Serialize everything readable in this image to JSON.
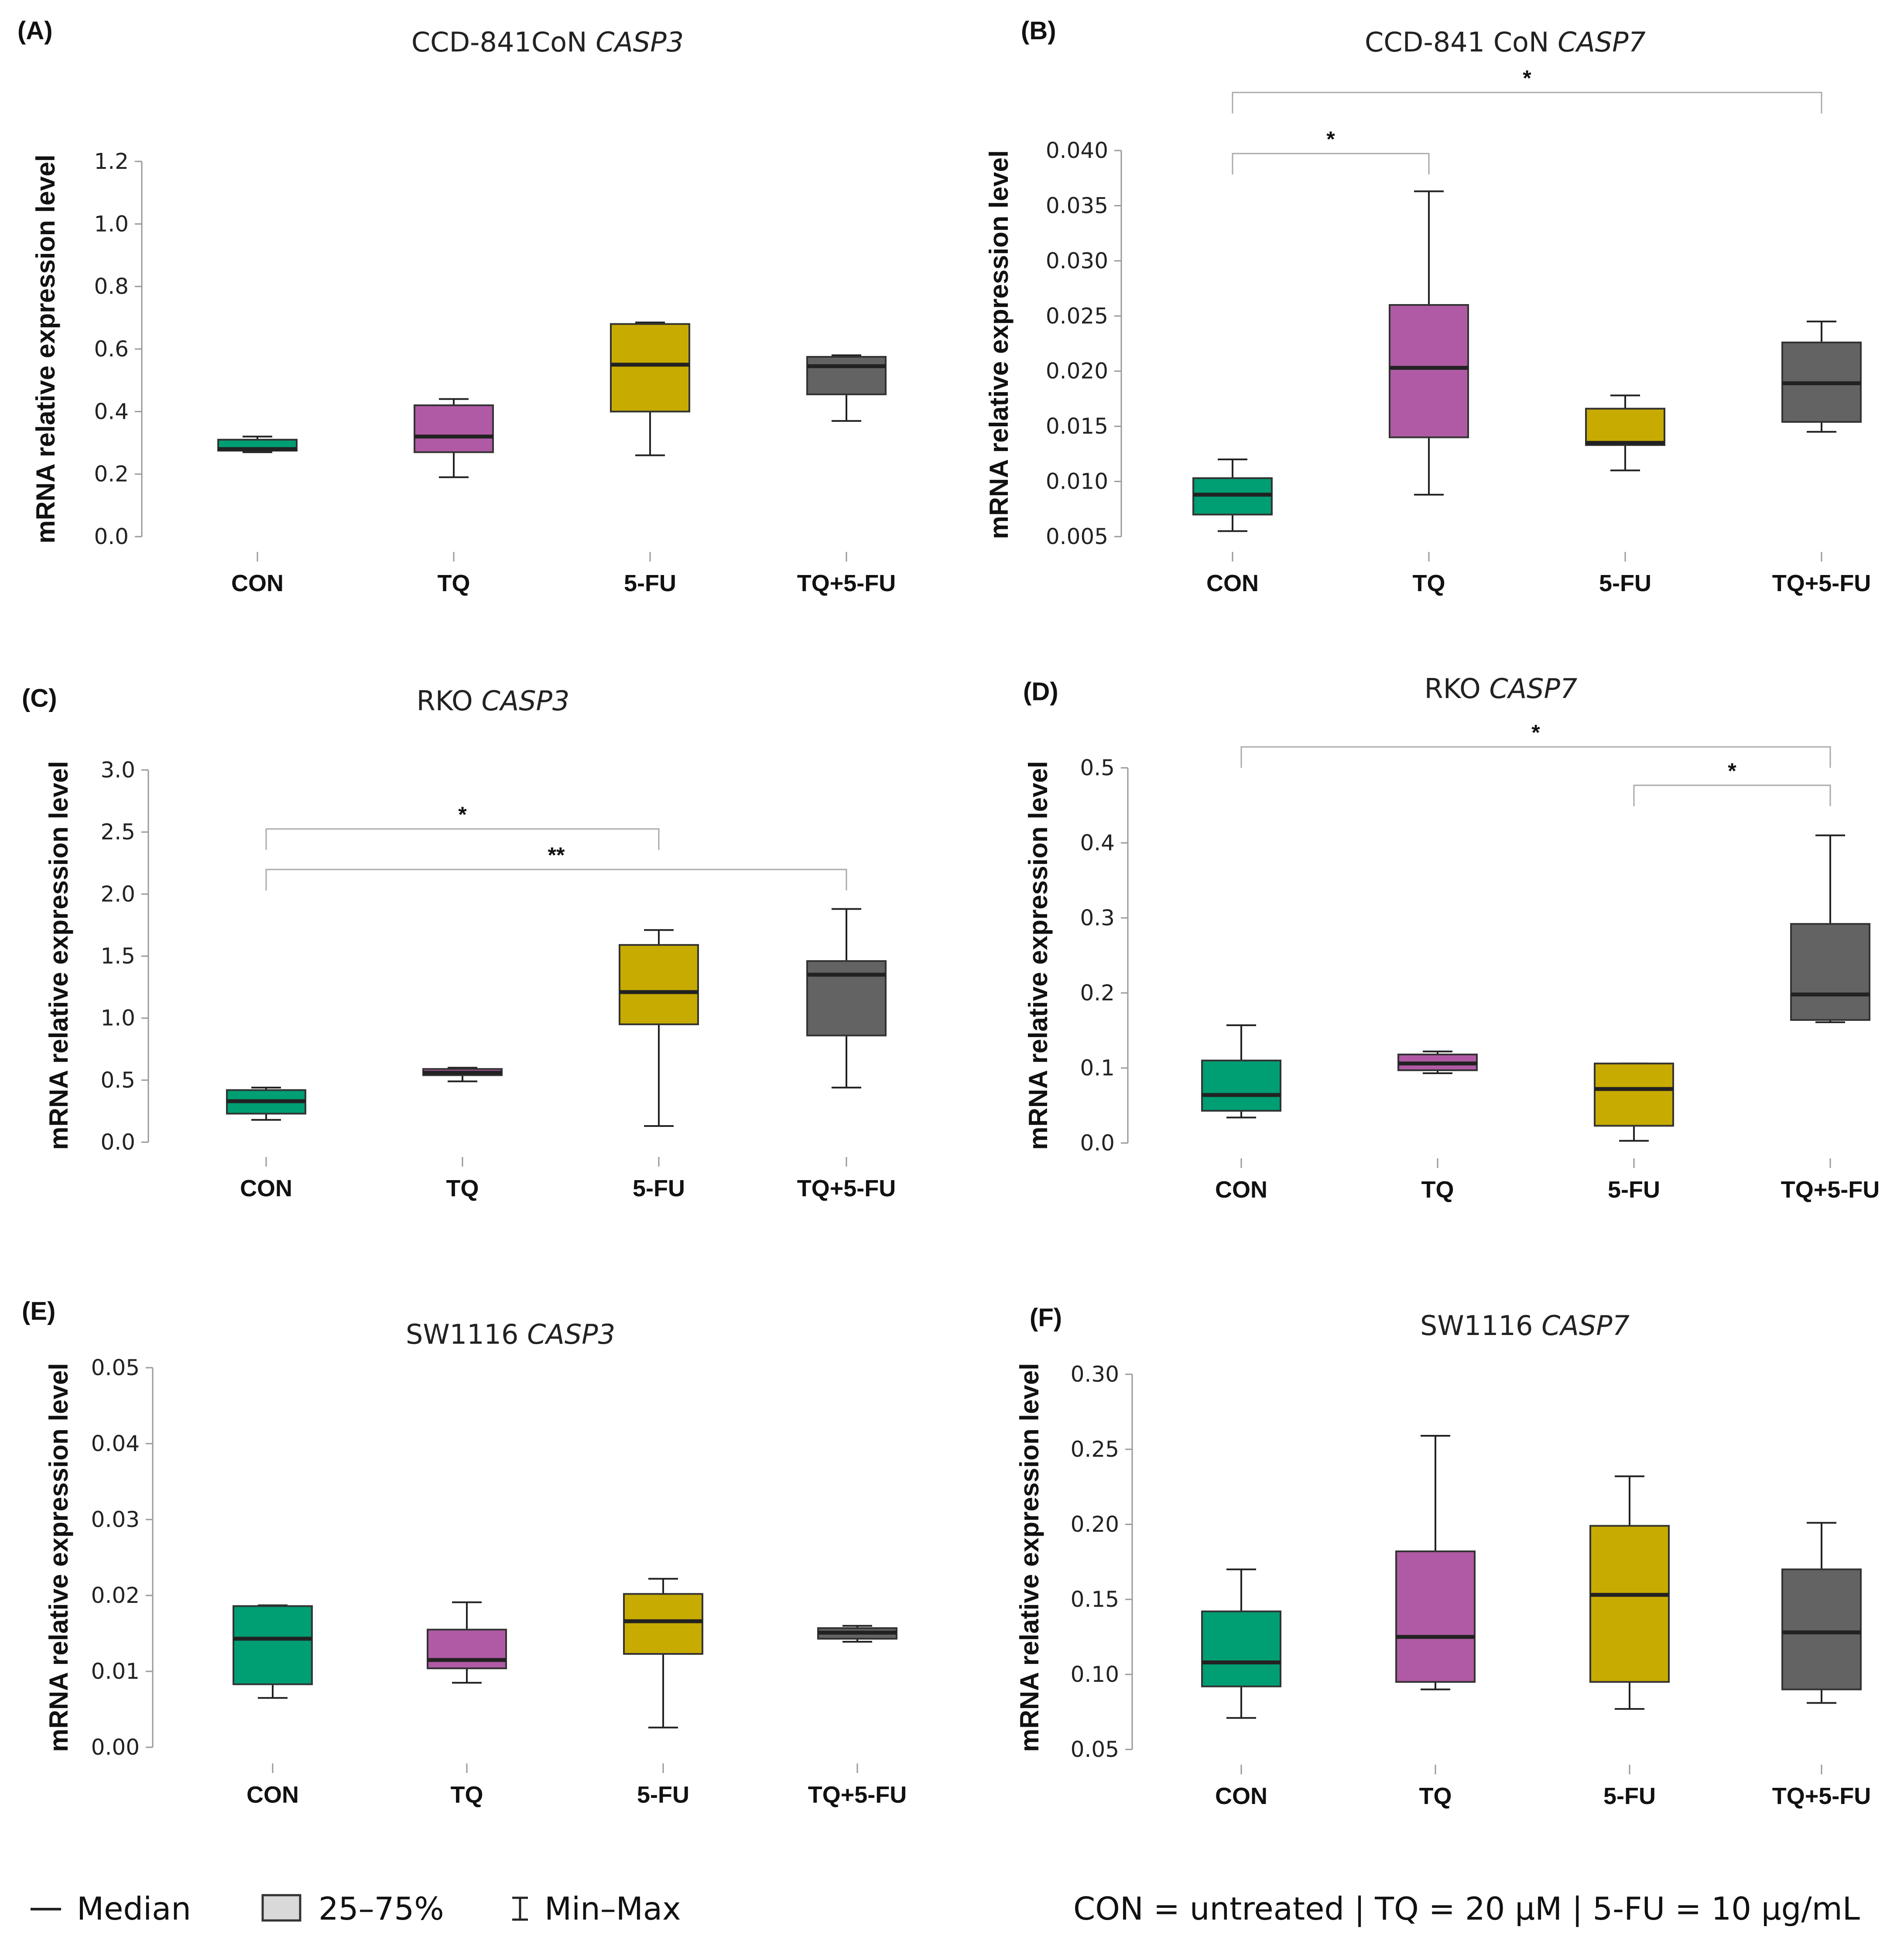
{
  "chart_data": [
    {
      "panel": "(A)",
      "type": "box",
      "title": "CCD-841CoN",
      "title_gene": "CASP3",
      "ylabel": "mRNA relative expression level",
      "categories": [
        "CON",
        "TQ",
        "5-FU",
        "TQ+5-FU"
      ],
      "ylim": [
        0,
        1.2
      ],
      "yticks": [
        "0.0",
        "0.2",
        "0.4",
        "0.6",
        "0.8",
        "1.0",
        "1.2"
      ],
      "colors": [
        "#009e73",
        "#b05aa5",
        "#c8ab00",
        "#636363"
      ],
      "boxes": [
        {
          "min": 0.27,
          "q1": 0.275,
          "median": 0.28,
          "q3": 0.31,
          "max": 0.32
        },
        {
          "min": 0.19,
          "q1": 0.27,
          "median": 0.32,
          "q3": 0.42,
          "max": 0.44
        },
        {
          "min": 0.26,
          "q1": 0.4,
          "median": 0.55,
          "q3": 0.68,
          "max": 0.685
        },
        {
          "min": 0.37,
          "q1": 0.455,
          "median": 0.545,
          "q3": 0.575,
          "max": 0.58
        }
      ],
      "sig": []
    },
    {
      "panel": "(B)",
      "type": "box",
      "title": "CCD-841 CoN",
      "title_gene": "CASP7",
      "ylabel": "mRNA relative expression level",
      "categories": [
        "CON",
        "TQ",
        "5-FU",
        "TQ+5-FU"
      ],
      "ylim": [
        0.005,
        0.04
      ],
      "yticks": [
        "0.005",
        "0.010",
        "0.015",
        "0.020",
        "0.025",
        "0.030",
        "0.035",
        "0.040"
      ],
      "colors": [
        "#009e73",
        "#b05aa5",
        "#c8ab00",
        "#636363"
      ],
      "boxes": [
        {
          "min": 0.0055,
          "q1": 0.007,
          "median": 0.0088,
          "q3": 0.0103,
          "max": 0.012
        },
        {
          "min": 0.0088,
          "q1": 0.014,
          "median": 0.0203,
          "q3": 0.026,
          "max": 0.0363
        },
        {
          "min": 0.011,
          "q1": 0.0133,
          "median": 0.0135,
          "q3": 0.0166,
          "max": 0.0178
        },
        {
          "min": 0.0145,
          "q1": 0.0154,
          "median": 0.0189,
          "q3": 0.0226,
          "max": 0.0245
        }
      ],
      "sig": [
        {
          "from": 0,
          "to": 1,
          "label": "*",
          "level": 0
        },
        {
          "from": 0,
          "to": 3,
          "label": "*",
          "level": 1
        }
      ]
    },
    {
      "panel": "(C)",
      "type": "box",
      "title": "RKO",
      "title_gene": "CASP3",
      "ylabel": "mRNA relative expression level",
      "categories": [
        "CON",
        "TQ",
        "5-FU",
        "TQ+5-FU"
      ],
      "ylim": [
        0,
        3.0
      ],
      "yticks": [
        "0.0",
        "0.5",
        "1.0",
        "1.5",
        "2.0",
        "2.5",
        "3.0"
      ],
      "colors": [
        "#009e73",
        "#b05aa5",
        "#c8ab00",
        "#636363"
      ],
      "boxes": [
        {
          "min": 0.18,
          "q1": 0.23,
          "median": 0.33,
          "q3": 0.42,
          "max": 0.44
        },
        {
          "min": 0.49,
          "q1": 0.54,
          "median": 0.56,
          "q3": 0.59,
          "max": 0.6
        },
        {
          "min": 0.13,
          "q1": 0.95,
          "median": 1.21,
          "q3": 1.59,
          "max": 1.71
        },
        {
          "min": 0.44,
          "q1": 0.86,
          "median": 1.35,
          "q3": 1.46,
          "max": 1.88
        }
      ],
      "sig": [
        {
          "from": 0,
          "to": 2,
          "label": "*",
          "level": 1
        },
        {
          "from": 0,
          "to": 3,
          "label": "**",
          "level": 0
        }
      ]
    },
    {
      "panel": "(D)",
      "type": "box",
      "title": "RKO",
      "title_gene": "CASP7",
      "ylabel": "mRNA relative expression level",
      "categories": [
        "CON",
        "TQ",
        "5-FU",
        "TQ+5-FU"
      ],
      "ylim": [
        0,
        0.5
      ],
      "yticks": [
        "0.0",
        "0.1",
        "0.2",
        "0.3",
        "0.4",
        "0.5"
      ],
      "colors": [
        "#009e73",
        "#b05aa5",
        "#c8ab00",
        "#636363"
      ],
      "boxes": [
        {
          "min": 0.034,
          "q1": 0.043,
          "median": 0.064,
          "q3": 0.11,
          "max": 0.157
        },
        {
          "min": 0.093,
          "q1": 0.097,
          "median": 0.106,
          "q3": 0.118,
          "max": 0.122
        },
        {
          "min": 0.003,
          "q1": 0.023,
          "median": 0.072,
          "q3": 0.106,
          "max": 0.106
        },
        {
          "min": 0.161,
          "q1": 0.164,
          "median": 0.198,
          "q3": 0.292,
          "max": 0.41
        }
      ],
      "sig": [
        {
          "from": 2,
          "to": 3,
          "label": "*",
          "level": 0
        },
        {
          "from": 0,
          "to": 3,
          "label": "*",
          "level": 1
        }
      ]
    },
    {
      "panel": "(E)",
      "type": "box",
      "title": "SW1116",
      "title_gene": "CASP3",
      "ylabel": "mRNA relative expression level",
      "categories": [
        "CON",
        "TQ",
        "5-FU",
        "TQ+5-FU"
      ],
      "ylim": [
        0,
        0.05
      ],
      "yticks": [
        "0.00",
        "0.01",
        "0.02",
        "0.03",
        "0.04",
        "0.05"
      ],
      "colors": [
        "#009e73",
        "#b05aa5",
        "#c8ab00",
        "#636363"
      ],
      "boxes": [
        {
          "min": 0.0065,
          "q1": 0.0083,
          "median": 0.0143,
          "q3": 0.0186,
          "max": 0.0187
        },
        {
          "min": 0.0085,
          "q1": 0.0104,
          "median": 0.0115,
          "q3": 0.0155,
          "max": 0.0191
        },
        {
          "min": 0.0026,
          "q1": 0.0123,
          "median": 0.0166,
          "q3": 0.0202,
          "max": 0.0222
        },
        {
          "min": 0.0139,
          "q1": 0.0143,
          "median": 0.0151,
          "q3": 0.0157,
          "max": 0.016
        }
      ],
      "sig": []
    },
    {
      "panel": "(F)",
      "type": "box",
      "title": "SW1116",
      "title_gene": "CASP7",
      "ylabel": "mRNA relative expression level",
      "categories": [
        "CON",
        "TQ",
        "5-FU",
        "TQ+5-FU"
      ],
      "ylim": [
        0.05,
        0.3
      ],
      "yticks": [
        "0.05",
        "0.10",
        "0.15",
        "0.20",
        "0.25",
        "0.30"
      ],
      "colors": [
        "#009e73",
        "#b05aa5",
        "#c8ab00",
        "#636363"
      ],
      "boxes": [
        {
          "min": 0.071,
          "q1": 0.092,
          "median": 0.108,
          "q3": 0.142,
          "max": 0.17
        },
        {
          "min": 0.09,
          "q1": 0.095,
          "median": 0.125,
          "q3": 0.182,
          "max": 0.259
        },
        {
          "min": 0.077,
          "q1": 0.095,
          "median": 0.153,
          "q3": 0.199,
          "max": 0.232
        },
        {
          "min": 0.081,
          "q1": 0.09,
          "median": 0.128,
          "q3": 0.17,
          "max": 0.201
        }
      ],
      "sig": []
    }
  ],
  "legend": {
    "median": "Median",
    "iqr": "25–75%",
    "range": "Min–Max",
    "note": "CON = untreated | TQ = 20 μM |  5-FU = 10 μg/mL"
  }
}
